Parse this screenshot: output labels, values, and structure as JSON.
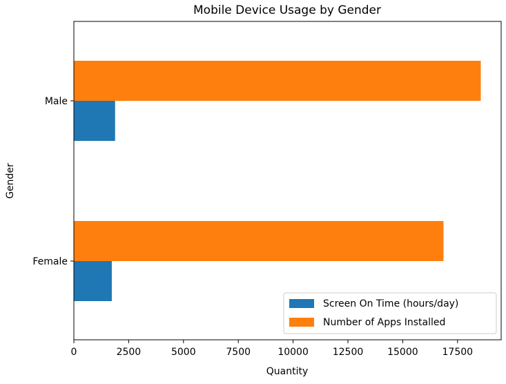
{
  "chart_data": {
    "type": "bar",
    "orientation": "horizontal",
    "title": "Mobile Device Usage by Gender",
    "xlabel": "Quantity",
    "ylabel": "Gender",
    "categories": [
      "Female",
      "Male"
    ],
    "series": [
      {
        "name": "Screen On Time (hours/day)",
        "color": "#1f77b4",
        "values": [
          1730,
          1880
        ]
      },
      {
        "name": "Number of Apps Installed",
        "color": "#ff7f0e",
        "values": [
          16860,
          18560
        ]
      }
    ],
    "xlim": [
      0,
      19490
    ],
    "xticks": [
      0,
      2500,
      5000,
      7500,
      10000,
      12500,
      15000,
      17500
    ],
    "xtick_labels": [
      "0",
      "2500",
      "5000",
      "7500",
      "10000",
      "12500",
      "15000",
      "17500"
    ],
    "grid": false,
    "legend_position": "lower right"
  }
}
